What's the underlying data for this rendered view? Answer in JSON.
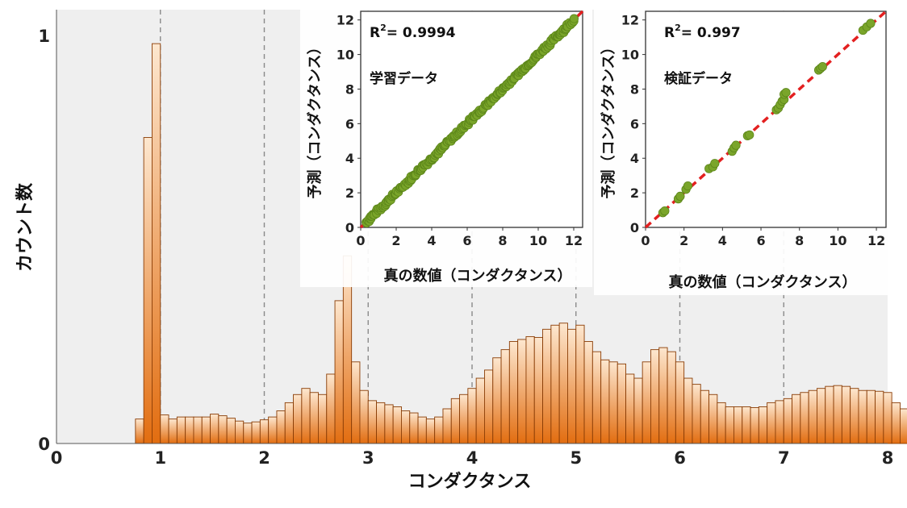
{
  "colors": {
    "bar_top": "#fde7cf",
    "bar_bottom": "#e26d10",
    "bar_stroke": "#8a3d06",
    "scatter_point": "#7aa52a",
    "scatter_edge": "#5c861a",
    "fit_line": "#e32020",
    "grid_dashed": "#8a8a8a",
    "plot_bg": "#efefef"
  },
  "chart_data": [
    {
      "type": "bar",
      "xlabel": "コンダクタンス",
      "ylabel": "カウント数",
      "xlim": [
        0,
        8
      ],
      "ylim": [
        0,
        1
      ],
      "x_ticks": [
        "0",
        "1",
        "2",
        "3",
        "4",
        "5",
        "6",
        "7",
        "8"
      ],
      "y_ticks": [
        "0",
        "1"
      ],
      "vertical_dashed_gridlines_at": [
        1,
        2,
        3,
        4,
        5,
        6,
        7
      ],
      "bin_start": 0.76,
      "bin_width": 0.08,
      "values": [
        0.06,
        0.75,
        0.98,
        0.07,
        0.06,
        0.065,
        0.065,
        0.065,
        0.065,
        0.072,
        0.068,
        0.062,
        0.055,
        0.05,
        0.053,
        0.058,
        0.065,
        0.08,
        0.1,
        0.12,
        0.135,
        0.125,
        0.12,
        0.17,
        0.35,
        0.46,
        0.2,
        0.13,
        0.105,
        0.1,
        0.095,
        0.09,
        0.08,
        0.075,
        0.065,
        0.06,
        0.065,
        0.085,
        0.11,
        0.12,
        0.135,
        0.16,
        0.18,
        0.21,
        0.23,
        0.25,
        0.255,
        0.262,
        0.26,
        0.28,
        0.29,
        0.295,
        0.28,
        0.29,
        0.25,
        0.225,
        0.205,
        0.2,
        0.195,
        0.17,
        0.16,
        0.2,
        0.23,
        0.235,
        0.225,
        0.2,
        0.16,
        0.145,
        0.13,
        0.12,
        0.1,
        0.09,
        0.09,
        0.09,
        0.088,
        0.09,
        0.1,
        0.105,
        0.11,
        0.12,
        0.125,
        0.13,
        0.135,
        0.14,
        0.142,
        0.14,
        0.135,
        0.13,
        0.13,
        0.128,
        0.125,
        0.1,
        0.085
      ]
    },
    {
      "type": "scatter",
      "title_line1_base": "R",
      "title_line1_sup": "2",
      "title_line1_rest": "= 0.9994",
      "subtitle": "学習データ",
      "xlabel": "真の数値（コンダクタンス）",
      "ylabel": "予測（コンダクタンス）",
      "xlim": [
        0,
        12.5
      ],
      "ylim": [
        0,
        12.5
      ],
      "x_ticks": [
        0,
        2,
        4,
        6,
        8,
        10,
        12
      ],
      "y_ticks": [
        0,
        2,
        4,
        6,
        8,
        10,
        12
      ],
      "dense_points": true,
      "x_range": [
        0.3,
        12.1
      ],
      "y_fn": "identity",
      "fit_line": [
        [
          0,
          0
        ],
        [
          12.5,
          12.5
        ]
      ]
    },
    {
      "type": "scatter",
      "title_line1_base": "R",
      "title_line1_sup": "2",
      "title_line1_rest": "= 0.997",
      "subtitle": "検証データ",
      "xlabel": "真の数値（コンダクタンス）",
      "ylabel": "予測（コンダクタンス）",
      "xlim": [
        0,
        12.5
      ],
      "ylim": [
        0,
        12.5
      ],
      "x_ticks": [
        0,
        2,
        4,
        6,
        8,
        10,
        12
      ],
      "y_ticks": [
        0,
        2,
        4,
        6,
        8,
        10,
        12
      ],
      "points": [
        [
          0.9,
          0.85
        ],
        [
          1.0,
          0.95
        ],
        [
          1.7,
          1.65
        ],
        [
          1.8,
          1.8
        ],
        [
          2.1,
          2.2
        ],
        [
          2.2,
          2.4
        ],
        [
          3.3,
          3.4
        ],
        [
          3.5,
          3.5
        ],
        [
          3.6,
          3.7
        ],
        [
          4.5,
          4.4
        ],
        [
          4.6,
          4.6
        ],
        [
          4.7,
          4.75
        ],
        [
          5.3,
          5.3
        ],
        [
          5.4,
          5.35
        ],
        [
          6.8,
          6.8
        ],
        [
          6.9,
          6.9
        ],
        [
          7.0,
          7.1
        ],
        [
          7.1,
          7.3
        ],
        [
          7.2,
          7.4
        ],
        [
          7.2,
          7.7
        ],
        [
          7.3,
          7.8
        ],
        [
          9.0,
          9.1
        ],
        [
          9.1,
          9.2
        ],
        [
          9.2,
          9.3
        ],
        [
          11.3,
          11.4
        ],
        [
          11.5,
          11.6
        ],
        [
          11.7,
          11.8
        ]
      ],
      "fit_line": [
        [
          0,
          0
        ],
        [
          12.5,
          12.5
        ]
      ]
    }
  ]
}
